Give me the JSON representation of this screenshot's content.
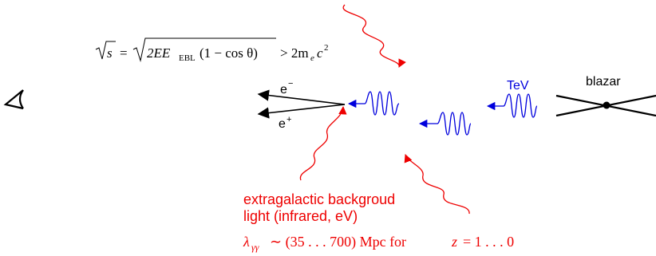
{
  "formula": {
    "sqrt_s": "s",
    "sqrt_arg_prefix": "2EE",
    "ebl_subscript": "EBL",
    "sqrt_arg_suffix": "(1 − cos θ)",
    "rhs": "> 2m",
    "rhs_subscript": "e",
    "rhs_c": "c",
    "rhs_power": "2"
  },
  "labels": {
    "electron": "e",
    "electron_sup": "−",
    "positron": "e",
    "positron_sup": "+",
    "tev": "TeV",
    "blazar": "blazar",
    "ebl_line1": "extragalactic backgroud",
    "ebl_line2": "light (infrared, eV)"
  },
  "mean_free_path": {
    "lambda": "λ",
    "lambda_sub": "γγ",
    "sim": "∼ (35 . . . 700) Mpc for",
    "z": "z",
    "range": "= 1 . . . 0"
  },
  "icons": {
    "observer": "eye-icon",
    "source": "blazar-jet-icon"
  },
  "colors": {
    "gamma_photon": "#0000dd",
    "ebl_photon": "#ee0000",
    "pair": "#000000"
  }
}
